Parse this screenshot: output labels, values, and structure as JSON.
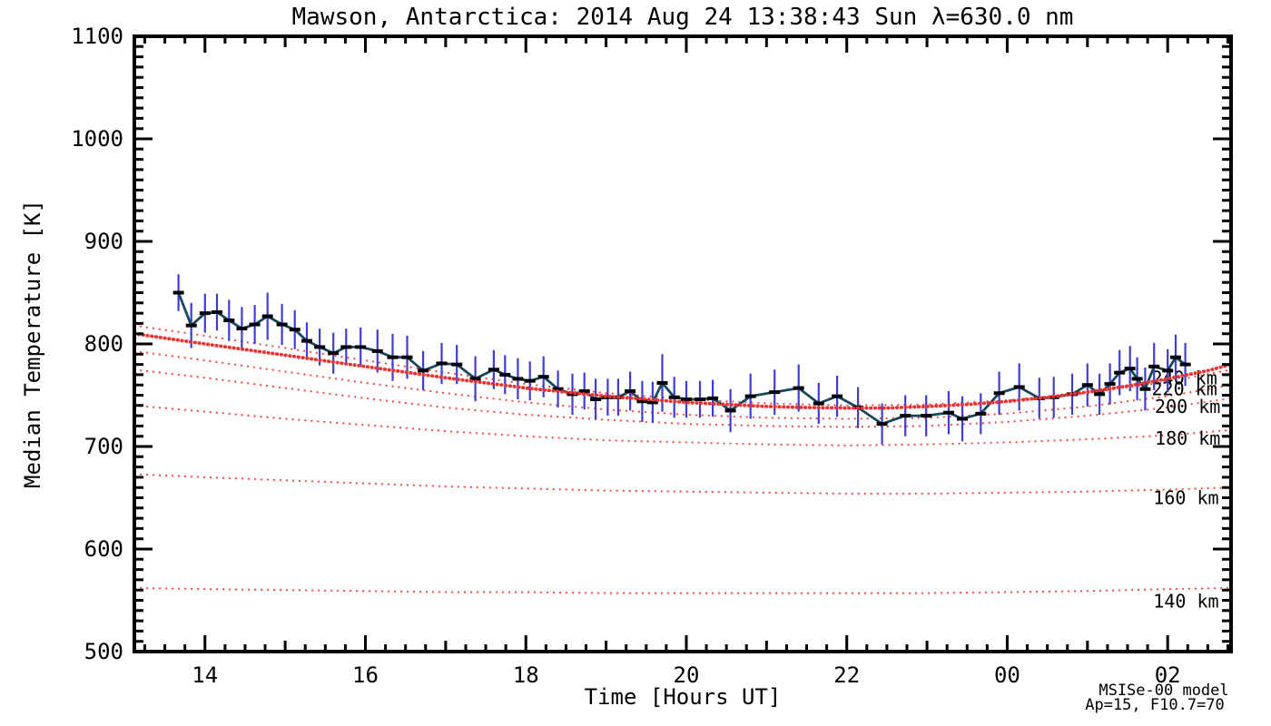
{
  "title": "Mawson, Antarctica: 2014 Aug 24 13:38:43 Sun λ=630.0 nm",
  "chart_data": {
    "type": "line",
    "title": "Mawson, Antarctica: 2014 Aug 24 13:38:43 Sun λ=630.0 nm",
    "xlabel": "Time [Hours UT]",
    "ylabel": "Median Temperature [K]",
    "xlim": [
      13.12,
      26.79
    ],
    "ylim": [
      500,
      1100
    ],
    "x_labeled_ticks": [
      {
        "value": 14,
        "label": "14"
      },
      {
        "value": 16,
        "label": "16"
      },
      {
        "value": 18,
        "label": "18"
      },
      {
        "value": 20,
        "label": "20"
      },
      {
        "value": 22,
        "label": "22"
      },
      {
        "value": 24,
        "label": "00"
      },
      {
        "value": 26,
        "label": "02"
      }
    ],
    "x_minor_step": 0.25,
    "y_major_step": 100,
    "y_minor_step": 10,
    "grid": false,
    "legend_position": "none",
    "colors": {
      "data_line": "#16475c",
      "error_bar": "#3e3ed6",
      "marker": "#000000",
      "model_bold_red": "#e83434",
      "model_thin_red": "#f25050",
      "annotation_red": "#f14949",
      "frame": "#000000"
    },
    "series": {
      "measured": {
        "name": "median temperature with error bars",
        "x": [
          13.67,
          13.83,
          14.0,
          14.15,
          14.3,
          14.46,
          14.62,
          14.78,
          14.96,
          15.12,
          15.27,
          15.43,
          15.6,
          15.76,
          15.94,
          16.15,
          16.34,
          16.52,
          16.72,
          16.95,
          17.14,
          17.37,
          17.6,
          17.74,
          17.9,
          18.05,
          18.22,
          18.4,
          18.58,
          18.73,
          18.87,
          19.02,
          19.15,
          19.3,
          19.45,
          19.58,
          19.7,
          19.85,
          20.0,
          20.17,
          20.33,
          20.55,
          20.8,
          21.1,
          21.4,
          21.65,
          21.88,
          22.14,
          22.44,
          22.73,
          22.99,
          23.27,
          23.44,
          23.67,
          23.9,
          24.15,
          24.4,
          24.58,
          24.81,
          25.0,
          25.15,
          25.28,
          25.4,
          25.53,
          25.62,
          25.72,
          25.83,
          26.0,
          26.1,
          26.22
        ],
        "y": [
          850,
          818,
          830,
          831,
          823,
          815,
          819,
          827,
          819,
          814,
          803,
          797,
          791,
          797,
          797,
          793,
          787,
          787,
          774,
          781,
          780,
          766,
          775,
          770,
          766,
          764,
          768,
          756,
          751,
          754,
          746,
          748,
          748,
          754,
          744,
          743,
          762,
          748,
          746,
          746,
          747,
          735,
          749,
          753,
          757,
          742,
          749,
          738,
          722,
          730,
          730,
          733,
          727,
          732,
          752,
          758,
          747,
          748,
          751,
          760,
          751,
          761,
          772,
          776,
          766,
          756,
          778,
          774,
          787,
          780
        ],
        "err": [
          18,
          22,
          19,
          18,
          20,
          21,
          19,
          23,
          20,
          19,
          18,
          18,
          20,
          18,
          19,
          21,
          23,
          21,
          19,
          20,
          19,
          22,
          19,
          19,
          20,
          19,
          20,
          18,
          20,
          18,
          20,
          18,
          18,
          19,
          20,
          20,
          28,
          20,
          18,
          18,
          18,
          21,
          22,
          22,
          23,
          20,
          20,
          20,
          20,
          20,
          20,
          21,
          22,
          20,
          21,
          23,
          20,
          20,
          20,
          21,
          20,
          20,
          22,
          22,
          21,
          21,
          23,
          21,
          22,
          21
        ]
      },
      "model_bold": {
        "name": "MSISe-00 model (bold dotted)",
        "points": [
          [
            13.12,
            810
          ],
          [
            14,
            800
          ],
          [
            15,
            789
          ],
          [
            16,
            778
          ],
          [
            17,
            767
          ],
          [
            18,
            757
          ],
          [
            19,
            749
          ],
          [
            20,
            743
          ],
          [
            21,
            739
          ],
          [
            21.5,
            738
          ],
          [
            22,
            737.5
          ],
          [
            22.5,
            737.5
          ],
          [
            23,
            739
          ],
          [
            23.5,
            741
          ],
          [
            24,
            744
          ],
          [
            24.5,
            748
          ],
          [
            25,
            753
          ],
          [
            25.5,
            759
          ],
          [
            26,
            766
          ],
          [
            26.5,
            774
          ],
          [
            26.79,
            780
          ]
        ]
      },
      "model_altitudes": [
        {
          "label": "240 km",
          "label_at": [
            25.8,
            767
          ],
          "points": [
            [
              13.12,
              818
            ],
            [
              14,
              808
            ],
            [
              15,
              796
            ],
            [
              16,
              784
            ],
            [
              17,
              772
            ],
            [
              18,
              761
            ],
            [
              19,
              752
            ],
            [
              20,
              746
            ],
            [
              21,
              742
            ],
            [
              22,
              740
            ],
            [
              23,
              741
            ],
            [
              24,
              745
            ],
            [
              25,
              752
            ],
            [
              26,
              763
            ],
            [
              26.79,
              775
            ]
          ]
        },
        {
          "label": "220 km",
          "label_at": [
            25.8,
            756
          ],
          "points": [
            [
              13.12,
              793
            ],
            [
              14,
              784
            ],
            [
              15,
              773
            ],
            [
              16,
              762
            ],
            [
              17,
              752
            ],
            [
              18,
              743
            ],
            [
              19,
              736
            ],
            [
              20,
              731
            ],
            [
              21,
              728
            ],
            [
              22,
              727
            ],
            [
              23,
              728
            ],
            [
              24,
              732
            ],
            [
              25,
              739
            ],
            [
              26,
              749
            ],
            [
              26.79,
              760
            ]
          ]
        },
        {
          "label": "200 km",
          "label_at": [
            25.84,
            739
          ],
          "points": [
            [
              13.12,
              775
            ],
            [
              14,
              767
            ],
            [
              15,
              757
            ],
            [
              16,
              747
            ],
            [
              17,
              738
            ],
            [
              18,
              731
            ],
            [
              19,
              726
            ],
            [
              20,
              722
            ],
            [
              21,
              720
            ],
            [
              22,
              719
            ],
            [
              23,
              720
            ],
            [
              24,
              724
            ],
            [
              25,
              730
            ],
            [
              26,
              738
            ],
            [
              26.79,
              747
            ]
          ]
        },
        {
          "label": "180 km",
          "label_at": [
            25.84,
            708
          ],
          "points": [
            [
              13.12,
              740
            ],
            [
              14,
              734
            ],
            [
              15,
              727
            ],
            [
              16,
              721
            ],
            [
              17,
              715
            ],
            [
              18,
              710
            ],
            [
              19,
              706
            ],
            [
              20,
              704
            ],
            [
              21,
              702
            ],
            [
              22,
              701
            ],
            [
              23,
              702
            ],
            [
              24,
              704
            ],
            [
              25,
              707
            ],
            [
              26,
              711
            ],
            [
              26.79,
              716
            ]
          ]
        },
        {
          "label": "160 km",
          "label_at": [
            25.82,
            650
          ],
          "points": [
            [
              13.12,
              673
            ],
            [
              14,
              670
            ],
            [
              15,
              667
            ],
            [
              16,
              664
            ],
            [
              17,
              661
            ],
            [
              18,
              659
            ],
            [
              19,
              657
            ],
            [
              20,
              656
            ],
            [
              21,
              655
            ],
            [
              22,
              654
            ],
            [
              23,
              654
            ],
            [
              24,
              655
            ],
            [
              25,
              656
            ],
            [
              26,
              658
            ],
            [
              26.79,
              660
            ]
          ]
        },
        {
          "label": "140 km",
          "label_at": [
            25.82,
            549
          ],
          "points": [
            [
              13.12,
              562
            ],
            [
              14,
              561
            ],
            [
              15,
              560
            ],
            [
              16,
              559
            ],
            [
              17,
              558
            ],
            [
              18,
              558
            ],
            [
              19,
              557
            ],
            [
              20,
              557
            ],
            [
              21,
              557
            ],
            [
              22,
              557
            ],
            [
              23,
              557
            ],
            [
              24,
              558
            ],
            [
              25,
              559
            ],
            [
              26,
              561
            ],
            [
              26.79,
              562
            ]
          ]
        }
      ]
    },
    "annotations": [
      "MSISe-00 model",
      "Ap=15, F10.7=70"
    ]
  }
}
